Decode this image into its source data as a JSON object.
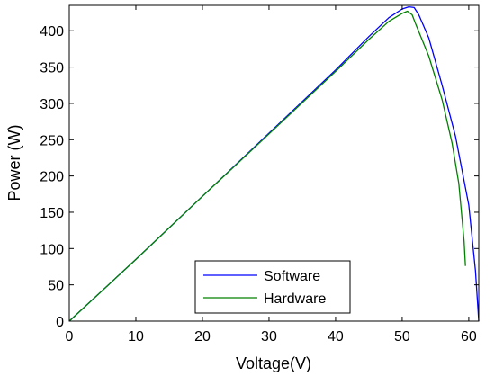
{
  "chart_data": {
    "type": "line",
    "xlabel": "Voltage(V)",
    "ylabel": "Power (W)",
    "xlim": [
      0,
      61.5
    ],
    "ylim": [
      0,
      435
    ],
    "xticks": [
      0,
      10,
      20,
      30,
      40,
      50,
      60
    ],
    "yticks": [
      0,
      50,
      100,
      150,
      200,
      250,
      300,
      350,
      400
    ],
    "grid": false,
    "legend_position": "bottom-center",
    "series": [
      {
        "name": "Software",
        "color": "#0000ff",
        "points": [
          [
            0,
            0
          ],
          [
            10,
            85
          ],
          [
            20,
            172
          ],
          [
            30,
            259
          ],
          [
            40,
            346
          ],
          [
            45,
            392
          ],
          [
            48,
            418
          ],
          [
            50,
            430
          ],
          [
            51,
            433
          ],
          [
            51.8,
            432
          ],
          [
            52.5,
            422
          ],
          [
            54,
            390
          ],
          [
            56,
            325
          ],
          [
            58,
            255
          ],
          [
            60,
            160
          ],
          [
            61,
            70
          ],
          [
            61.5,
            0
          ]
        ]
      },
      {
        "name": "Hardware",
        "color": "#008000",
        "points": [
          [
            0,
            0
          ],
          [
            10,
            85
          ],
          [
            20,
            172
          ],
          [
            30,
            258
          ],
          [
            40,
            344
          ],
          [
            45,
            388
          ],
          [
            48,
            413
          ],
          [
            50,
            424
          ],
          [
            50.8,
            427
          ],
          [
            51.5,
            422
          ],
          [
            52,
            410
          ],
          [
            54,
            365
          ],
          [
            56,
            305
          ],
          [
            57.5,
            245
          ],
          [
            58.5,
            190
          ],
          [
            59,
            140
          ],
          [
            59.3,
            110
          ],
          [
            59.5,
            76
          ]
        ]
      }
    ]
  }
}
